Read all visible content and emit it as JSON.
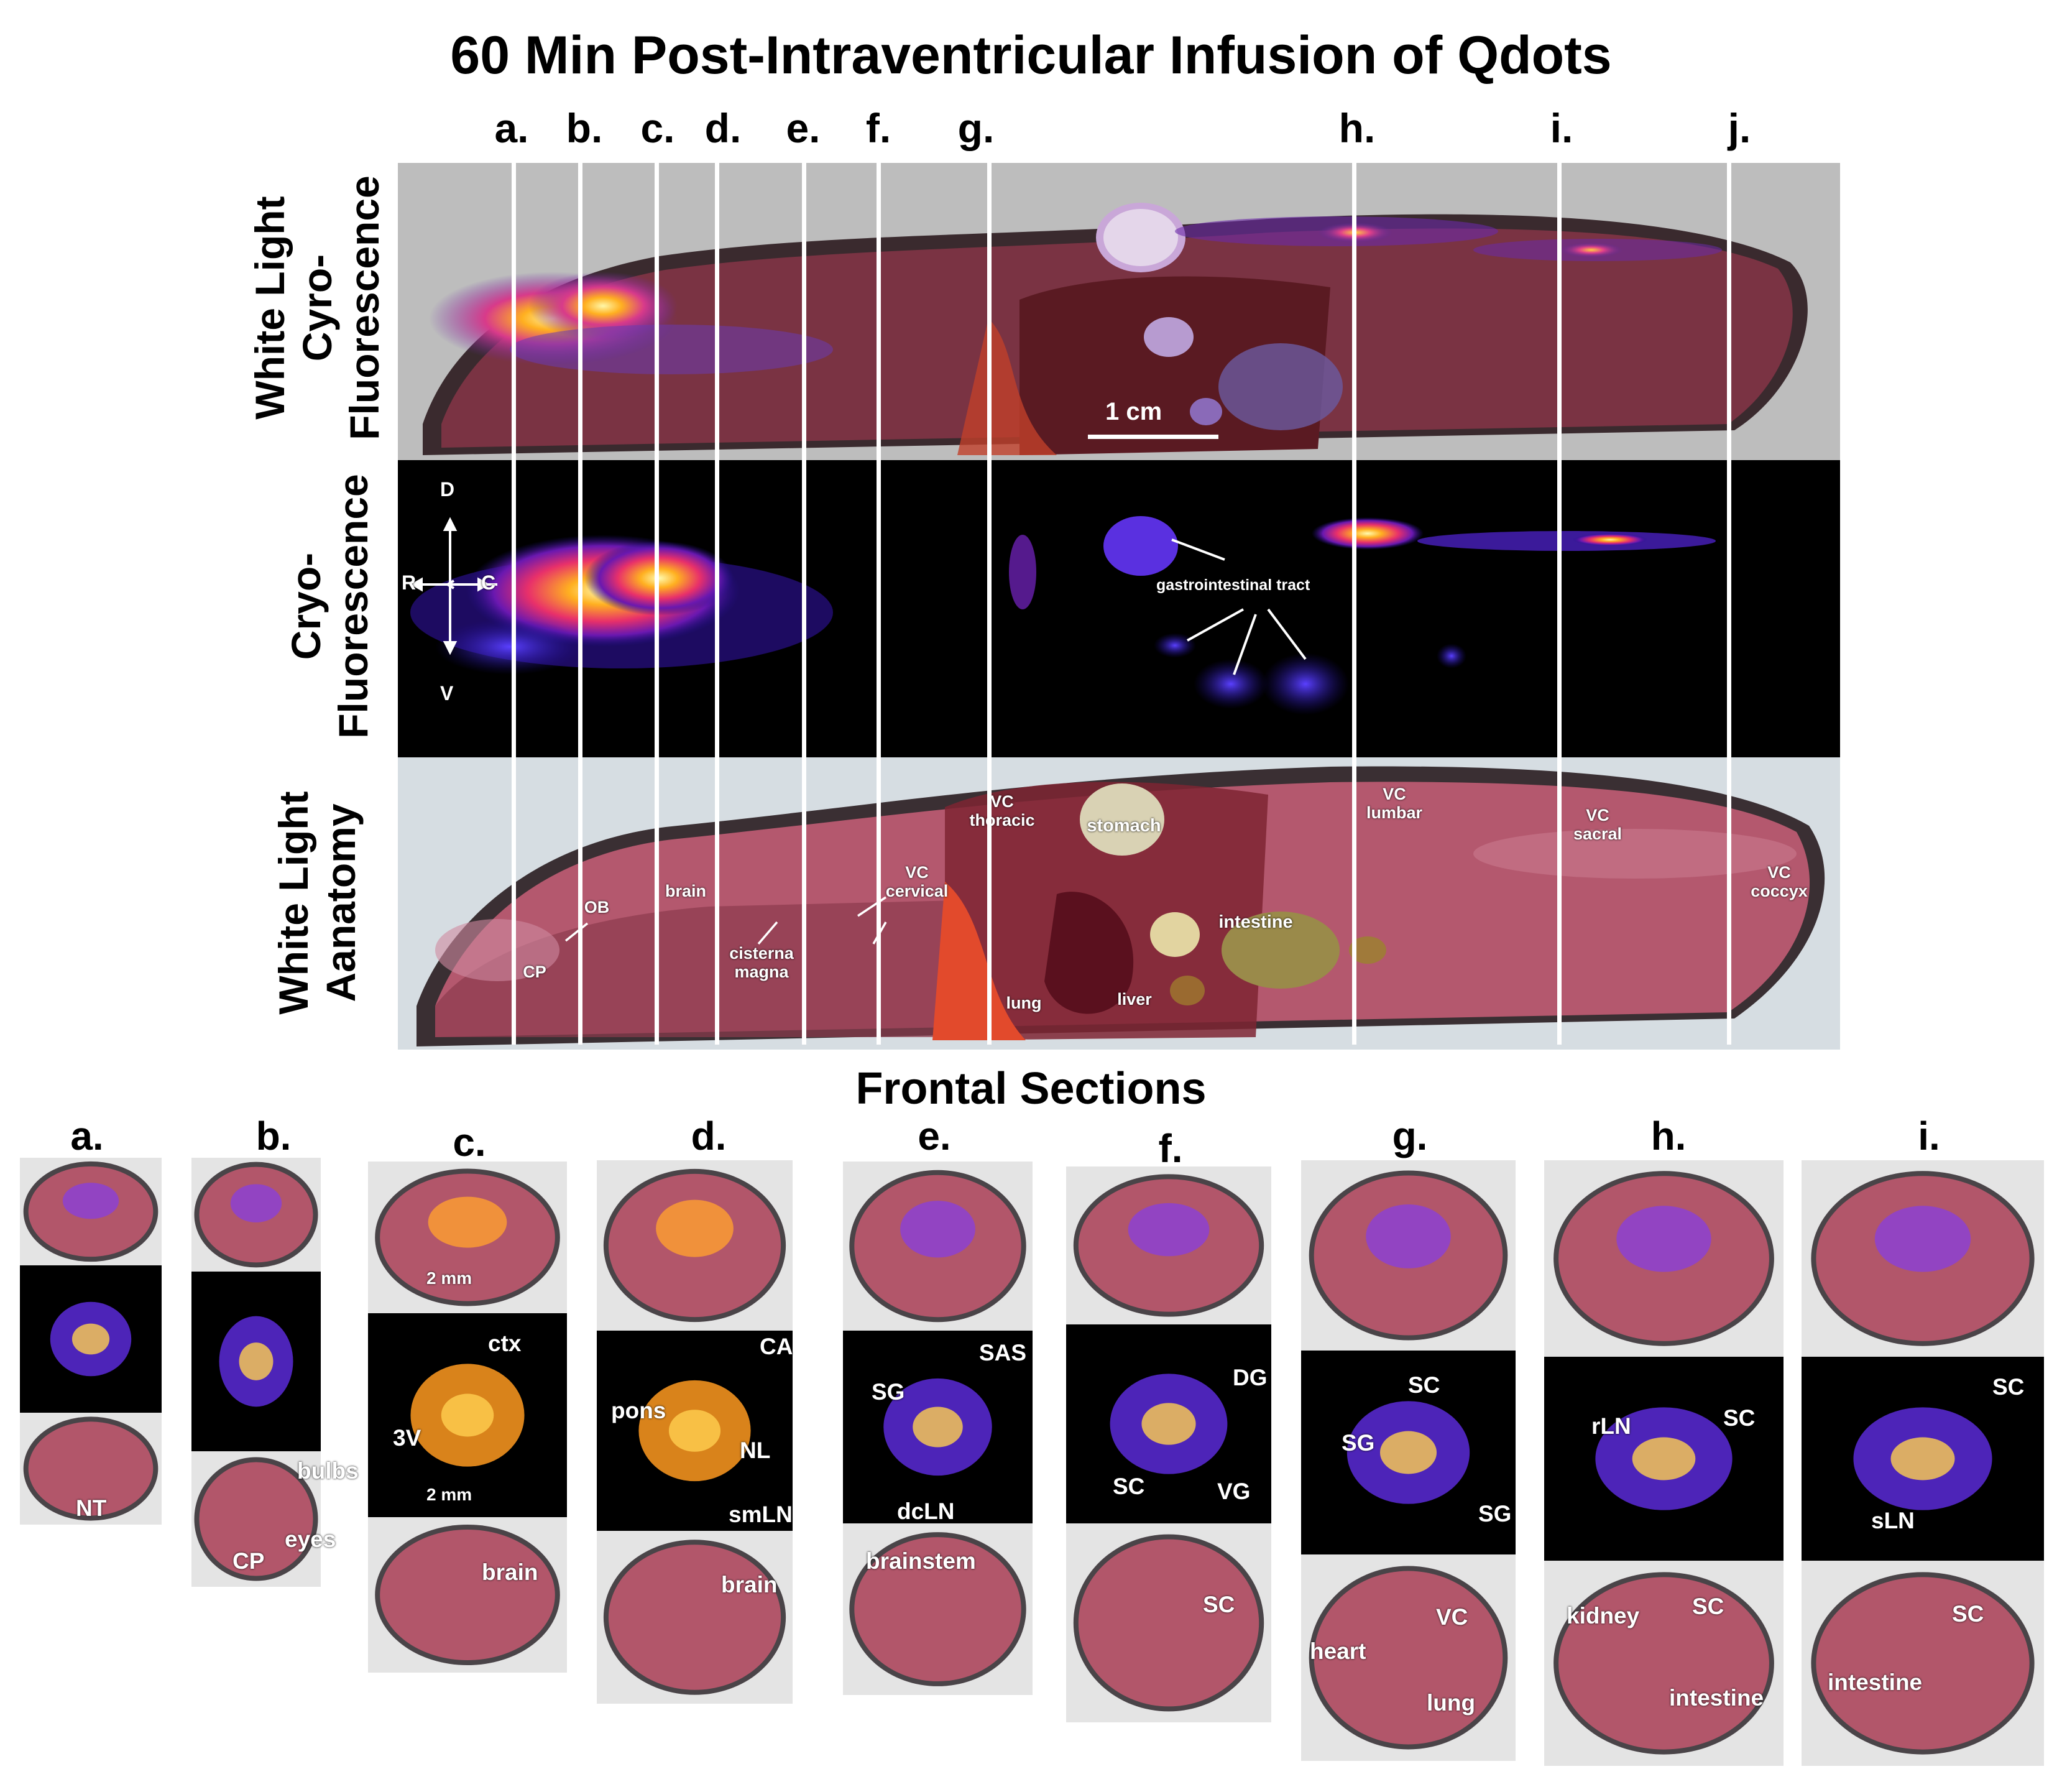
{
  "title": "60 Min Post-Intraventricular Infusion of Qdots",
  "column_letters": [
    "a.",
    "b.",
    "c.",
    "d.",
    "e.",
    "f.",
    "g.",
    "h.",
    "i.",
    "j."
  ],
  "row_labels": {
    "overlay": "White Light Cyro-Fluorescence",
    "fluorescence": "Cryo-Fluorescence",
    "anatomy": "White Light Aanatomy"
  },
  "overlay_panel": {
    "scale_bar": "1 cm"
  },
  "fluorescence_panel": {
    "orientation": {
      "dorsal": "D",
      "ventral": "V",
      "rostral": "R",
      "caudal": "C"
    },
    "gi_label": "gastrointestinal tract"
  },
  "anatomy_labels": {
    "vc_thoracic": "VC\nthoracic",
    "stomach": "stomach",
    "vc_lumbar": "VC\nlumbar",
    "vc_sacral": "VC\nsacral",
    "vc_coccyx": "VC\ncoccyx",
    "ob": "OB",
    "brain": "brain",
    "cisterna_magna": "cisterna\nmagna",
    "vc_cervical": "VC\ncervical",
    "intestine": "intestine",
    "cp": "CP",
    "lung": "lung",
    "liver": "liver"
  },
  "frontal_title": "Frontal Sections",
  "frontal_sections": [
    {
      "letter": "a.",
      "labels": [
        "NT"
      ]
    },
    {
      "letter": "b.",
      "labels": [
        "bulbs",
        "CP",
        "eyes"
      ]
    },
    {
      "letter": "c.",
      "labels": [
        "2 mm",
        "ctx",
        "3V",
        "2 mm",
        "brain"
      ]
    },
    {
      "letter": "d.",
      "labels": [
        "CA",
        "pons",
        "NL",
        "smLN",
        "brain"
      ]
    },
    {
      "letter": "e.",
      "labels": [
        "SAS",
        "SG",
        "dcLN",
        "brainstem"
      ]
    },
    {
      "letter": "f.",
      "labels": [
        "DG",
        "SC",
        "VG",
        "SC"
      ]
    },
    {
      "letter": "g.",
      "labels": [
        "SC",
        "SG",
        "SG",
        "VC",
        "heart",
        "lung"
      ]
    },
    {
      "letter": "h.",
      "labels": [
        "rLN",
        "SC",
        "kidney",
        "SC",
        "intestine"
      ]
    },
    {
      "letter": "i.",
      "labels": [
        "SC",
        "sLN",
        "SC",
        "intestine"
      ]
    }
  ]
}
